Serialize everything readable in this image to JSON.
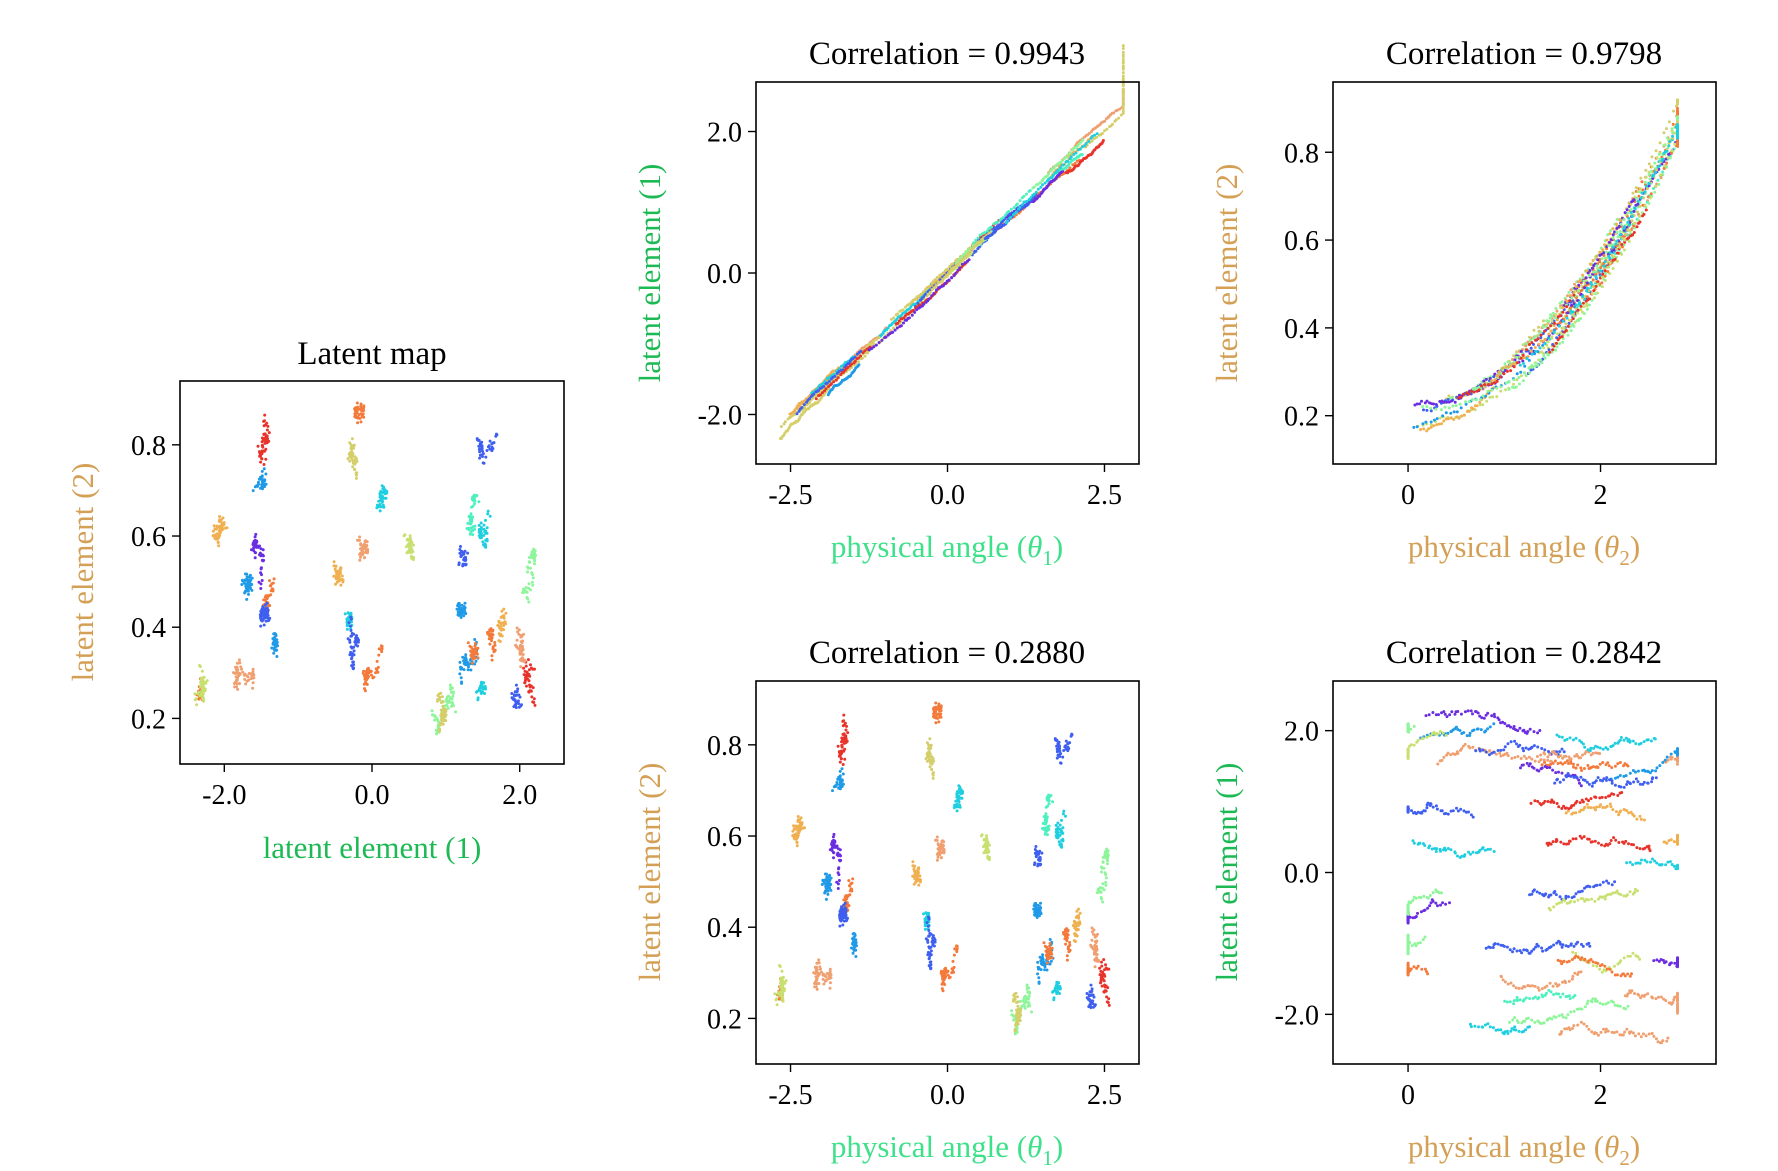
{
  "figure": {
    "colors": {
      "green_label": "#1db954",
      "bright_green_label": "#3ee08a",
      "gold_label": "#d4a056",
      "rainbow": [
        "#6a2ee0",
        "#3f5ff0",
        "#1e9ae8",
        "#1fcfe0",
        "#4ef0c0",
        "#8ef59a",
        "#c8e070",
        "#f0b050",
        "#f37a3a",
        "#e8332a",
        "#d4cf6a",
        "#f0a070"
      ]
    }
  },
  "chart_data": [
    {
      "id": "latent-map",
      "type": "scatter",
      "title": "Latent map",
      "xlabel": "latent element (1)",
      "ylabel": "latent element (2)",
      "xlabel_color": "green",
      "ylabel_color": "gold",
      "xlim": [
        -2.6,
        2.6
      ],
      "ylim": [
        0.1,
        0.94
      ],
      "xticks": [
        -2.0,
        0.0,
        2.0
      ],
      "xtick_labels": [
        "-2.0",
        "0.0",
        "2.0"
      ],
      "yticks": [
        0.2,
        0.4,
        0.6,
        0.8
      ],
      "ytick_labels": [
        "0.2",
        "0.4",
        "0.6",
        "0.8"
      ],
      "style": "scattered-trajectories",
      "trajectory_count": 36,
      "x_range_of_points": [
        -2.4,
        2.4
      ],
      "y_range_of_points": [
        0.13,
        0.9
      ],
      "seed": 11
    },
    {
      "id": "corr-theta1-l1",
      "type": "scatter",
      "title": "Correlation = 0.9943",
      "xlabel": "physical angle (θ1)",
      "xlabel_main": "physical angle (",
      "xlabel_sym": "θ",
      "xlabel_sub": "1",
      "xlabel_end": ")",
      "ylabel": "latent element (1)",
      "xlabel_color": "bright_green",
      "ylabel_color": "green",
      "xlim": [
        -3.05,
        3.05
      ],
      "ylim": [
        -2.7,
        2.7
      ],
      "xticks": [
        -2.5,
        0.0,
        2.5
      ],
      "xtick_labels": [
        "-2.5",
        "0.0",
        "2.5"
      ],
      "yticks": [
        -2.0,
        0.0,
        2.0
      ],
      "ytick_labels": [
        "-2.0",
        "0.0",
        "2.0"
      ],
      "style": "linear",
      "trajectory_count": 34,
      "x_range_of_points": [
        -2.75,
        2.8
      ],
      "relation": {
        "slope": 0.83,
        "intercept": -0.03,
        "noise": 0.12
      },
      "seed": 23
    },
    {
      "id": "corr-theta2-l2",
      "type": "scatter",
      "title": "Correlation = 0.9798",
      "xlabel": "physical angle (θ2)",
      "xlabel_main": "physical angle (",
      "xlabel_sym": "θ",
      "xlabel_sub": "2",
      "xlabel_end": ")",
      "ylabel": "latent element (2)",
      "xlabel_color": "gold",
      "ylabel_color": "gold",
      "xlim": [
        -0.78,
        3.2
      ],
      "ylim": [
        0.09,
        0.96
      ],
      "xticks": [
        0,
        2
      ],
      "xtick_labels": [
        "0",
        "2"
      ],
      "yticks": [
        0.2,
        0.4,
        0.6,
        0.8
      ],
      "ytick_labels": [
        "0.2",
        "0.4",
        "0.6",
        "0.8"
      ],
      "style": "curve",
      "trajectory_count": 34,
      "x_range_of_points": [
        0.0,
        2.8
      ],
      "relation": {
        "a": 0.2,
        "b": 0.085,
        "c": 2.0,
        "noise": 0.035
      },
      "seed": 37
    },
    {
      "id": "corr-theta1-l2",
      "type": "scatter",
      "title": "Correlation = 0.2880",
      "xlabel": "physical angle (θ1)",
      "xlabel_main": "physical angle (",
      "xlabel_sym": "θ",
      "xlabel_sub": "1",
      "xlabel_end": ")",
      "ylabel": "latent element (2)",
      "xlabel_color": "bright_green",
      "ylabel_color": "gold",
      "xlim": [
        -3.05,
        3.05
      ],
      "ylim": [
        0.1,
        0.94
      ],
      "xticks": [
        -2.5,
        0.0,
        2.5
      ],
      "xtick_labels": [
        "-2.5",
        "0.0",
        "2.5"
      ],
      "yticks": [
        0.2,
        0.4,
        0.6,
        0.8
      ],
      "ytick_labels": [
        "0.2",
        "0.4",
        "0.6",
        "0.8"
      ],
      "style": "scattered-trajectories",
      "trajectory_count": 36,
      "x_range_of_points": [
        -2.75,
        2.8
      ],
      "y_range_of_points": [
        0.13,
        0.9
      ],
      "seed": 11
    },
    {
      "id": "corr-theta2-l1",
      "type": "scatter",
      "title": "Correlation = 0.2842",
      "xlabel": "physical angle (θ2)",
      "xlabel_main": "physical angle (",
      "xlabel_sym": "θ",
      "xlabel_sub": "2",
      "xlabel_end": ")",
      "ylabel": "latent element (1)",
      "xlabel_color": "gold",
      "ylabel_color": "green",
      "xlim": [
        -0.78,
        3.2
      ],
      "ylim": [
        -2.7,
        2.7
      ],
      "xticks": [
        0,
        2
      ],
      "xtick_labels": [
        "0",
        "2"
      ],
      "yticks": [
        -2.0,
        0.0,
        2.0
      ],
      "ytick_labels": [
        "-2.0",
        "0.0",
        "2.0"
      ],
      "style": "horizontal-trajectories",
      "trajectory_count": 36,
      "x_range_of_points": [
        0.0,
        2.8
      ],
      "y_range_of_points": [
        -2.4,
        2.35
      ],
      "seed": 53
    }
  ]
}
